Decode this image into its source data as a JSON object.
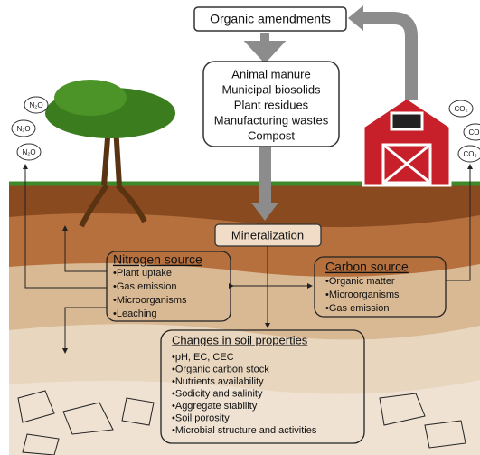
{
  "title": "Organic amendments",
  "amendments": [
    "Animal manure",
    "Municipal biosolids",
    "Plant residues",
    "Manufacturing wastes",
    "Compost"
  ],
  "process": "Mineralization",
  "nitrogen_source": {
    "title": "Nitrogen source",
    "items": [
      "•Plant uptake",
      "•Gas emission",
      "•Microorganisms",
      "•Leaching"
    ]
  },
  "carbon_source": {
    "title": "Carbon source",
    "items": [
      "•Organic matter",
      "•Microorganisms",
      "•Gas emission"
    ]
  },
  "soil_changes": {
    "title": "Changes in soil properties",
    "items": [
      "•pH, EC, CEC",
      "•Organic carbon stock",
      "•Nutrients availability",
      "•Sodicity and salinity",
      "•Aggregate stability",
      "•Soil porosity",
      "•Microbial structure and activities"
    ]
  },
  "gases": {
    "left": [
      "N₂O",
      "N₂O",
      "N₂O"
    ],
    "right": [
      "CO₂",
      "CO₂",
      "CO₂"
    ]
  }
}
